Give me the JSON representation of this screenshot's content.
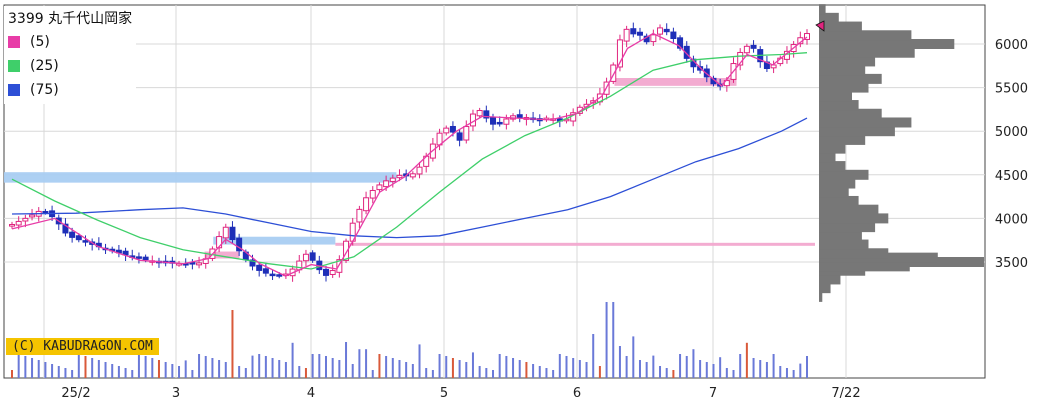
{
  "chart_data": {
    "type": "candlestick",
    "title": "3399 丸千代山岡家",
    "legend": [
      {
        "label": "(5)",
        "color": "#e83ca7"
      },
      {
        "label": "(25)",
        "color": "#3fcf6a"
      },
      {
        "label": "(75)",
        "color": "#2d4fd6"
      }
    ],
    "watermark": "(C) KABUDRAGON.COM",
    "x_tick_labels": [
      "25/2",
      "3",
      "4",
      "5",
      "6",
      "7",
      "7/22"
    ],
    "y_ticks": [
      3500,
      4000,
      4500,
      5000,
      5500,
      6000
    ],
    "y_tick_labels": [
      "3500",
      "4000",
      "4500",
      "5000",
      "5500",
      "6000"
    ],
    "ylim": [
      3000,
      6400
    ],
    "grid": true,
    "legend_position": "top-left",
    "bar_count": 120,
    "close_key_points": [
      [
        0,
        3930
      ],
      [
        4,
        4020
      ],
      [
        7,
        4100
      ],
      [
        10,
        4000
      ],
      [
        13,
        3800
      ],
      [
        16,
        3750
      ],
      [
        20,
        3680
      ],
      [
        24,
        3620
      ],
      [
        28,
        3560
      ],
      [
        32,
        3520
      ],
      [
        36,
        3490
      ],
      [
        40,
        3480
      ],
      [
        44,
        3490
      ],
      [
        46,
        3560
      ],
      [
        48,
        3760
      ],
      [
        50,
        3900
      ],
      [
        52,
        3720
      ],
      [
        54,
        3560
      ],
      [
        57,
        3420
      ],
      [
        60,
        3360
      ],
      [
        63,
        3340
      ],
      [
        65,
        3380
      ],
      [
        67,
        3500
      ],
      [
        69,
        3600
      ],
      [
        71,
        3480
      ],
      [
        73,
        3330
      ],
      [
        75,
        3400
      ],
      [
        77,
        3560
      ],
      [
        79,
        3870
      ],
      [
        81,
        4080
      ],
      [
        83,
        4250
      ],
      [
        85,
        4350
      ],
      [
        87,
        4420
      ],
      [
        89,
        4460
      ],
      [
        91,
        4500
      ],
      [
        93,
        4480
      ],
      [
        95,
        4560
      ],
      [
        97,
        4720
      ],
      [
        99,
        4900
      ],
      [
        101,
        5050
      ],
      [
        103,
        5000
      ],
      [
        105,
        4880
      ],
      [
        107,
        5150
      ],
      [
        109,
        5260
      ],
      [
        111,
        5150
      ],
      [
        113,
        5060
      ],
      [
        115,
        5120
      ],
      [
        117,
        5180
      ],
      [
        119,
        5150
      ],
      [
        121,
        5160
      ],
      [
        123,
        5110
      ],
      [
        125,
        5150
      ],
      [
        127,
        5140
      ],
      [
        129,
        5100
      ],
      [
        131,
        5200
      ],
      [
        133,
        5280
      ],
      [
        135,
        5320
      ],
      [
        137,
        5380
      ],
      [
        139,
        5550
      ],
      [
        141,
        5800
      ],
      [
        143,
        6200
      ],
      [
        145,
        6120
      ],
      [
        147,
        6100
      ],
      [
        149,
        6000
      ],
      [
        151,
        6200
      ],
      [
        153,
        6150
      ],
      [
        155,
        6050
      ],
      [
        157,
        5900
      ],
      [
        159,
        5750
      ],
      [
        161,
        5700
      ],
      [
        163,
        5600
      ],
      [
        165,
        5500
      ],
      [
        167,
        5550
      ],
      [
        169,
        5800
      ],
      [
        171,
        5950
      ],
      [
        173,
        6000
      ],
      [
        175,
        5800
      ],
      [
        177,
        5700
      ],
      [
        179,
        5800
      ],
      [
        181,
        5900
      ],
      [
        183,
        6000
      ],
      [
        185,
        6100
      ],
      [
        186,
        6120
      ]
    ],
    "ma5_points": [
      [
        0,
        3880
      ],
      [
        10,
        4000
      ],
      [
        20,
        3680
      ],
      [
        30,
        3520
      ],
      [
        40,
        3480
      ],
      [
        46,
        3540
      ],
      [
        50,
        3760
      ],
      [
        54,
        3640
      ],
      [
        58,
        3480
      ],
      [
        64,
        3340
      ],
      [
        70,
        3470
      ],
      [
        76,
        3420
      ],
      [
        80,
        3760
      ],
      [
        86,
        4300
      ],
      [
        92,
        4480
      ],
      [
        98,
        4760
      ],
      [
        104,
        5000
      ],
      [
        110,
        5170
      ],
      [
        118,
        5150
      ],
      [
        126,
        5130
      ],
      [
        132,
        5200
      ],
      [
        138,
        5400
      ],
      [
        144,
        5950
      ],
      [
        150,
        6120
      ],
      [
        156,
        5980
      ],
      [
        162,
        5680
      ],
      [
        166,
        5520
      ],
      [
        172,
        5880
      ],
      [
        178,
        5760
      ],
      [
        186,
        6080
      ]
    ],
    "ma25_points": [
      [
        0,
        4450
      ],
      [
        10,
        4200
      ],
      [
        20,
        3980
      ],
      [
        30,
        3780
      ],
      [
        40,
        3640
      ],
      [
        50,
        3560
      ],
      [
        60,
        3480
      ],
      [
        70,
        3420
      ],
      [
        80,
        3560
      ],
      [
        90,
        3900
      ],
      [
        100,
        4300
      ],
      [
        110,
        4680
      ],
      [
        120,
        4950
      ],
      [
        130,
        5150
      ],
      [
        140,
        5400
      ],
      [
        150,
        5700
      ],
      [
        160,
        5820
      ],
      [
        170,
        5860
      ],
      [
        180,
        5880
      ],
      [
        186,
        5900
      ]
    ],
    "ma75_points": [
      [
        0,
        4050
      ],
      [
        15,
        4060
      ],
      [
        30,
        4100
      ],
      [
        40,
        4120
      ],
      [
        50,
        4050
      ],
      [
        60,
        3950
      ],
      [
        70,
        3850
      ],
      [
        80,
        3800
      ],
      [
        90,
        3780
      ],
      [
        100,
        3800
      ],
      [
        110,
        3900
      ],
      [
        120,
        4000
      ],
      [
        130,
        4100
      ],
      [
        140,
        4250
      ],
      [
        150,
        4450
      ],
      [
        160,
        4650
      ],
      [
        170,
        4800
      ],
      [
        180,
        5000
      ],
      [
        186,
        5150
      ]
    ],
    "volume_profile": [
      [
        3100,
        0.02
      ],
      [
        3200,
        0.07
      ],
      [
        3300,
        0.13
      ],
      [
        3400,
        0.28
      ],
      [
        3450,
        0.55
      ],
      [
        3500,
        1.0
      ],
      [
        3550,
        0.72
      ],
      [
        3600,
        0.42
      ],
      [
        3700,
        0.3
      ],
      [
        3800,
        0.26
      ],
      [
        3900,
        0.34
      ],
      [
        4000,
        0.42
      ],
      [
        4100,
        0.36
      ],
      [
        4200,
        0.24
      ],
      [
        4300,
        0.18
      ],
      [
        4400,
        0.22
      ],
      [
        4500,
        0.3
      ],
      [
        4600,
        0.16
      ],
      [
        4700,
        0.1
      ],
      [
        4800,
        0.16
      ],
      [
        4900,
        0.28
      ],
      [
        5000,
        0.46
      ],
      [
        5100,
        0.56
      ],
      [
        5200,
        0.38
      ],
      [
        5300,
        0.24
      ],
      [
        5400,
        0.2
      ],
      [
        5500,
        0.3
      ],
      [
        5600,
        0.38
      ],
      [
        5700,
        0.28
      ],
      [
        5800,
        0.34
      ],
      [
        5900,
        0.58
      ],
      [
        6000,
        0.82
      ],
      [
        6100,
        0.56
      ],
      [
        6200,
        0.26
      ],
      [
        6300,
        0.12
      ],
      [
        6400,
        0.04
      ]
    ],
    "support_zones": [
      {
        "y_low": 4410,
        "y_high": 4530,
        "x_start": 0,
        "x_end": 90,
        "color": "#a9cdf2"
      },
      {
        "y_low": 3700,
        "y_high": 3790,
        "x_start": 48,
        "x_end": 76,
        "color": "#a9cdf2"
      },
      {
        "y_low": 3690,
        "y_high": 3720,
        "x_start": 76,
        "x_end": 186,
        "color": "#f2a8cf"
      },
      {
        "y_low": 3540,
        "y_high": 3620,
        "x_start": 46,
        "x_end": 54,
        "color": "#f2a8cf"
      },
      {
        "y_low": 5520,
        "y_high": 5610,
        "x_start": 140,
        "x_end": 168,
        "color": "#f2a8cf"
      }
    ],
    "volume_spikes": [
      [
        52,
        0.85
      ],
      [
        40,
        0.22
      ],
      [
        44,
        0.3
      ],
      [
        56,
        0.28
      ],
      [
        66,
        0.44
      ],
      [
        70,
        0.3
      ],
      [
        78,
        0.45
      ],
      [
        82,
        0.36
      ],
      [
        95,
        0.42
      ],
      [
        108,
        0.32
      ],
      [
        136,
        0.55
      ],
      [
        140,
        0.95
      ],
      [
        142,
        0.4
      ],
      [
        146,
        0.52
      ],
      [
        150,
        0.28
      ],
      [
        160,
        0.36
      ],
      [
        166,
        0.26
      ],
      [
        172,
        0.44
      ],
      [
        178,
        0.3
      ],
      [
        184,
        0.18
      ]
    ]
  }
}
